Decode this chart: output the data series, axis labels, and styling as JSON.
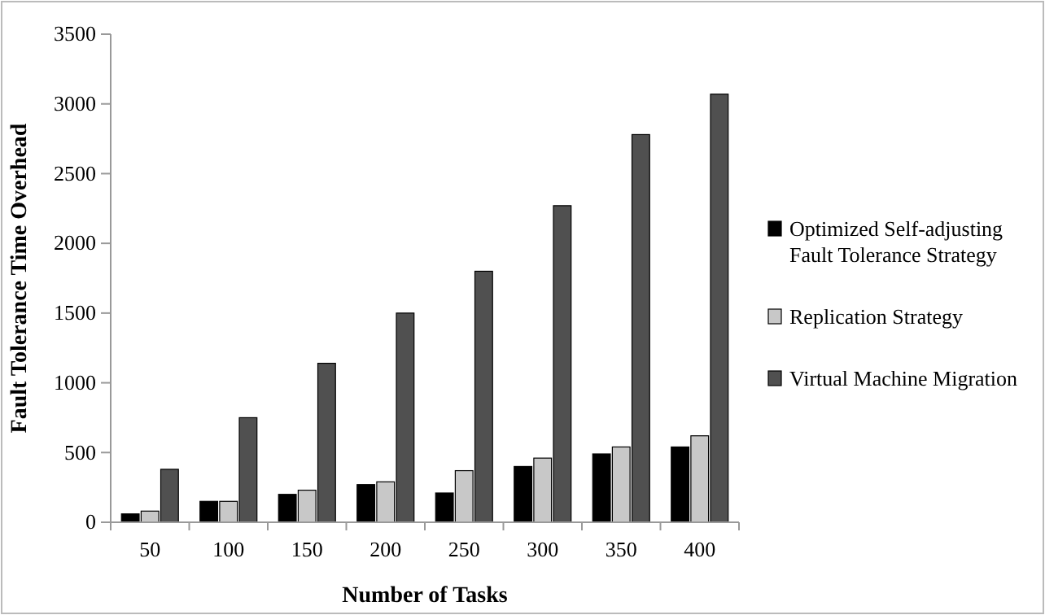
{
  "chart_data": {
    "type": "bar",
    "xlabel": "Number of Tasks",
    "ylabel": "Fault Tolerance Time Overhead",
    "categories": [
      "50",
      "100",
      "150",
      "200",
      "250",
      "300",
      "350",
      "400"
    ],
    "series": [
      {
        "name": "Optimized Self-adjusting Fault Tolerance Strategy",
        "color": "#000000",
        "values": [
          60,
          150,
          200,
          270,
          210,
          400,
          490,
          540
        ]
      },
      {
        "name": "Replication Strategy",
        "color": "#c8c8c8",
        "values": [
          80,
          150,
          230,
          290,
          370,
          460,
          540,
          620
        ]
      },
      {
        "name": "Virtual Machine Migration",
        "color": "#505050",
        "values": [
          380,
          750,
          1140,
          1500,
          1800,
          2270,
          2780,
          3070
        ]
      }
    ],
    "ylim": [
      0,
      3500
    ],
    "yticks": [
      0,
      500,
      1000,
      1500,
      2000,
      2500,
      3000,
      3500
    ],
    "grid": false,
    "legend": "right"
  }
}
